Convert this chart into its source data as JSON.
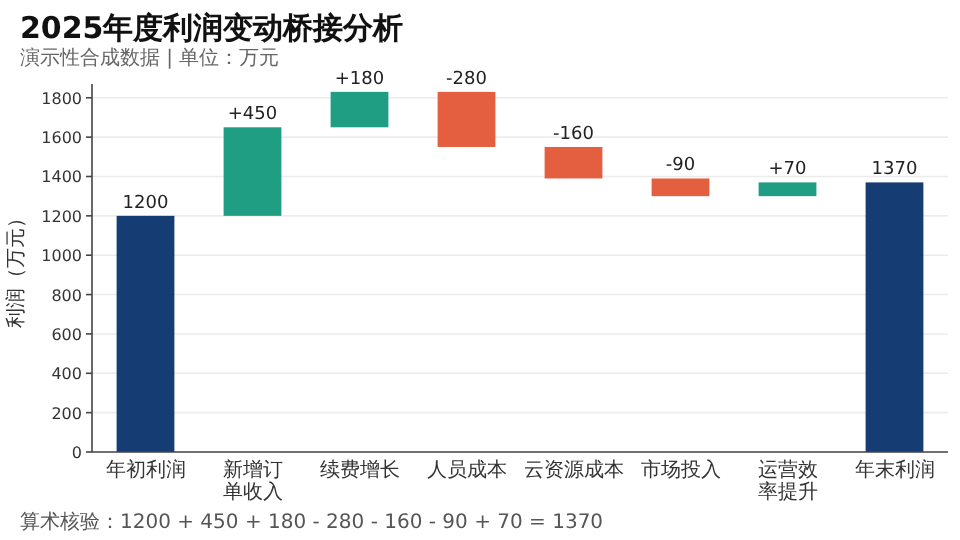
{
  "chart_data": {
    "type": "bar",
    "title": "2025年度利润变动桥接分析",
    "subtitle": "演示性合成数据 | 单位：万元",
    "ylabel": "利润（万元）",
    "categories": [
      "年初利润",
      "新增订单收入",
      "续费增长",
      "人员成本",
      "云资源成本",
      "市场投入",
      "运营效率提升",
      "年末利润"
    ],
    "values": [
      1200,
      450,
      180,
      -280,
      -160,
      -90,
      70,
      1370
    ],
    "base": [
      0,
      1200,
      1650,
      1830,
      1550,
      1390,
      1300,
      0
    ],
    "colors": [
      "#163d73",
      "#1f9e84",
      "#1f9e84",
      "#e45f40",
      "#e45f40",
      "#e45f40",
      "#1f9e84",
      "#163d73"
    ],
    "value_labels": [
      "1200",
      "+450",
      "+180",
      "-280",
      "-160",
      "-90",
      "+70",
      "1370"
    ],
    "ylim": [
      0,
      1870
    ],
    "yticks": [
      0,
      200,
      400,
      600,
      800,
      1000,
      1200,
      1400,
      1600,
      1800
    ],
    "grid": "y",
    "annotations": [
      "算术核验：1200 + 450 + 180 - 280 - 160 - 90 + 70 = 1370"
    ]
  }
}
